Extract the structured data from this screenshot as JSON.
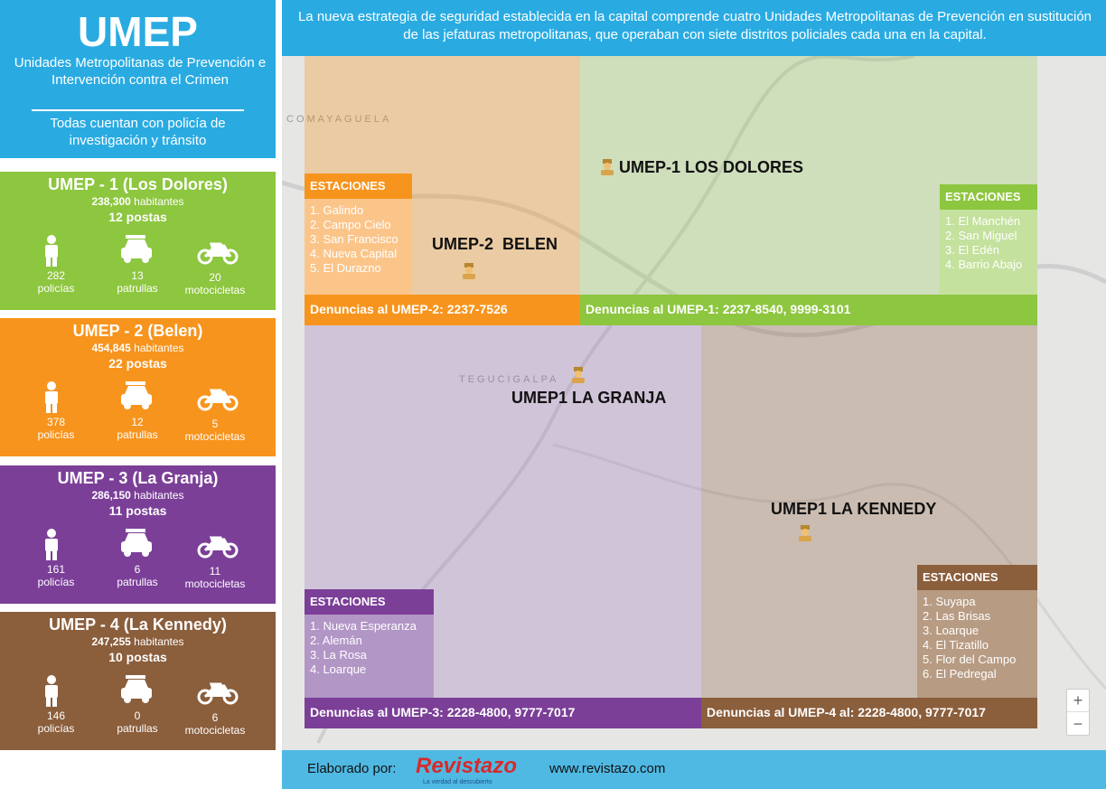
{
  "header": {
    "title": "UMEP",
    "subtitle": "Unidades Metropolitanas de Prevención e Intervención contra el Crimen",
    "note": "Todas cuentan con policía de investigación y tránsito"
  },
  "banner": "La nueva estrategia de seguridad establecida en la capital comprende cuatro Unidades Metropolitanas de Prevención en sustitución de las jefaturas metropolitanas, que operaban con siete distritos policiales cada una en la capital.",
  "units": [
    {
      "name": "UMEP - 1 (Los Dolores)",
      "population": "238,300",
      "population_label": "habitantes",
      "posts": "12",
      "posts_label": "postas",
      "stats": [
        {
          "value": "282",
          "label": "policías"
        },
        {
          "value": "13",
          "label": "patrullas"
        },
        {
          "value": "20",
          "label": "motocicletas"
        }
      ]
    },
    {
      "name": "UMEP - 2  (Belen)",
      "population": "454,845",
      "population_label": "habitantes",
      "posts": "22",
      "posts_label": "postas",
      "stats": [
        {
          "value": "378",
          "label": "policías"
        },
        {
          "value": "12",
          "label": "patrullas"
        },
        {
          "value": "5",
          "label": "motocicletas"
        }
      ]
    },
    {
      "name": "UMEP - 3 (La Granja)",
      "population": "286,150",
      "population_label": "habitantes",
      "posts": "11",
      "posts_label": "postas",
      "stats": [
        {
          "value": "161",
          "label": "policías"
        },
        {
          "value": "6",
          "label": "patrullas"
        },
        {
          "value": "11",
          "label": "motocicletas"
        }
      ]
    },
    {
      "name": "UMEP - 4 (La Kennedy)",
      "population": "247,255",
      "population_label": "habitantes",
      "posts": "10",
      "posts_label": "postas",
      "stats": [
        {
          "value": "146",
          "label": "policías"
        },
        {
          "value": "0",
          "label": "patrullas"
        },
        {
          "value": "6",
          "label": "motocicletas"
        }
      ]
    }
  ],
  "map": {
    "labels": [
      "COMAYAGUELA",
      "TEGUCIGALPA"
    ],
    "zones": [
      {
        "name": "UMEP-1 LOS DOLORES",
        "stations_title": "ESTACIONES",
        "stations": [
          "1. El Manchén",
          "2. San Miguel",
          "3. El Edén",
          "4. Barrio Abajo"
        ],
        "complaints": "Denuncias al UMEP-1: 2237-8540, 9999-3101"
      },
      {
        "name": "UMEP-2  BELEN",
        "stations_title": "ESTACIONES",
        "stations": [
          "1. Galindo",
          "2. Campo Cielo",
          "3. San Francisco",
          "4. Nueva Capital",
          "5. El Durazno"
        ],
        "complaints": "Denuncias al UMEP-2: 2237-7526"
      },
      {
        "name": "UMEP1 LA GRANJA",
        "stations_title": "ESTACIONES",
        "stations": [
          "1. Nueva Esperanza",
          "2. Alemán",
          "3. La Rosa",
          "4. Loarque"
        ],
        "complaints": "Denuncias al UMEP-3: 2228-4800, 9777-7017"
      },
      {
        "name": "UMEP1 LA KENNEDY",
        "stations_title": "ESTACIONES",
        "stations": [
          "1. Suyapa",
          "2. Las Brisas",
          "3. Loarque",
          "4. El Tizatillo",
          "5. Flor del Campo",
          "6. El Pedregal"
        ],
        "complaints": "Denuncias al UMEP-4 al: 2228-4800, 9777-7017"
      }
    ],
    "zoom_in": "+",
    "zoom_out": "−"
  },
  "footer": {
    "credit": "Elaborado por:",
    "logo": "Revistazo",
    "tagline": "La verdad al descubierto",
    "url": "www.revistazo.com"
  }
}
